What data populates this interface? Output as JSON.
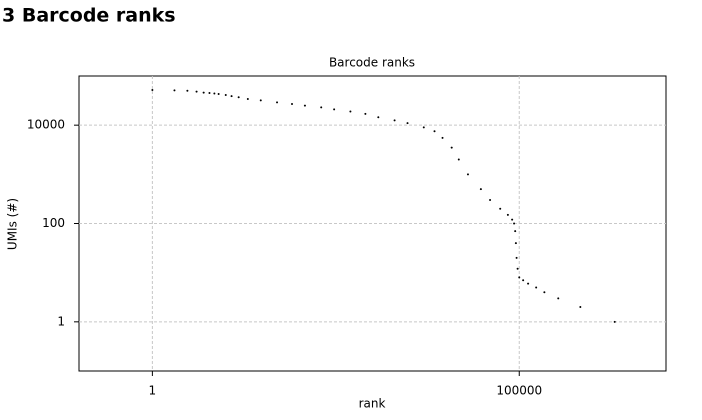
{
  "header": {
    "title": "3 Barcode ranks"
  },
  "chart_data": {
    "type": "scatter",
    "title": "Barcode ranks",
    "x_label": "rank",
    "y_label": "UMIs (#)",
    "x": [
      1,
      2,
      3,
      4,
      5,
      6,
      7,
      8,
      10,
      12,
      15,
      20,
      30,
      50,
      80,
      120,
      200,
      300,
      500,
      800,
      1200,
      2000,
      3000,
      5000,
      7000,
      9000,
      12000,
      15000,
      20000,
      30000,
      40000,
      55000,
      70000,
      80000,
      85000,
      88000,
      90000,
      92000,
      95000,
      100000,
      113000,
      132000,
      170000,
      220000,
      340000,
      680000,
      2000000
    ],
    "values": [
      52000,
      51000,
      50000,
      48000,
      46000,
      45000,
      44000,
      43000,
      41000,
      39000,
      37000,
      34000,
      32000,
      29000,
      27000,
      25000,
      23000,
      21000,
      19000,
      17000,
      14500,
      12500,
      11000,
      9000,
      7500,
      5500,
      3500,
      2000,
      1000,
      500,
      300,
      200,
      150,
      120,
      100,
      70,
      40,
      20,
      12,
      8,
      7,
      6,
      5,
      4,
      3,
      2,
      1
    ],
    "color": "#000000",
    "xscale": "log",
    "yscale": "log",
    "xlim": [
      0.1,
      10000000
    ],
    "ylim": [
      0.1,
      100000
    ],
    "xticks": [
      1,
      100000
    ],
    "yticks": [
      1,
      100,
      10000
    ],
    "grid": true
  }
}
